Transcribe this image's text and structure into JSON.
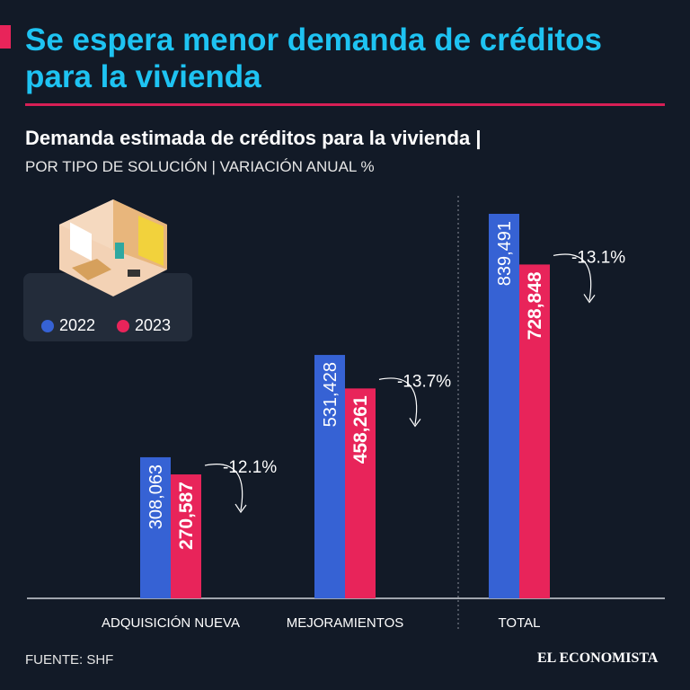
{
  "header": {
    "title": "Se espera menor demanda de créditos para la vivienda",
    "subtitle": "Demanda estimada de créditos para la vivienda |",
    "subtitle2": "POR TIPO DE SOLUCIÓN | VARIACIÓN ANUAL %"
  },
  "footer": {
    "source": "FUENTE: SHF",
    "brand": "EL ECONOMISTA"
  },
  "colors": {
    "2022": "#3662d4",
    "2023": "#e8245a",
    "title": "#1ec3f2",
    "background": "#121a27"
  },
  "chart_data": {
    "type": "bar",
    "categories": [
      "ADQUISICIÓN NUEVA",
      "MEJORAMIENTOS",
      "TOTAL"
    ],
    "series": [
      {
        "name": "2022",
        "values": [
          308063,
          531428,
          839491
        ],
        "labels": [
          "308,063",
          "531,428",
          "839,491"
        ]
      },
      {
        "name": "2023",
        "values": [
          270587,
          458261,
          728848
        ],
        "labels": [
          "270,587",
          "458,261",
          "728,848"
        ]
      }
    ],
    "annotations": [
      "-12.1%",
      "-13.7%",
      "-13.1%"
    ],
    "legend": "top-left",
    "grid": false
  }
}
